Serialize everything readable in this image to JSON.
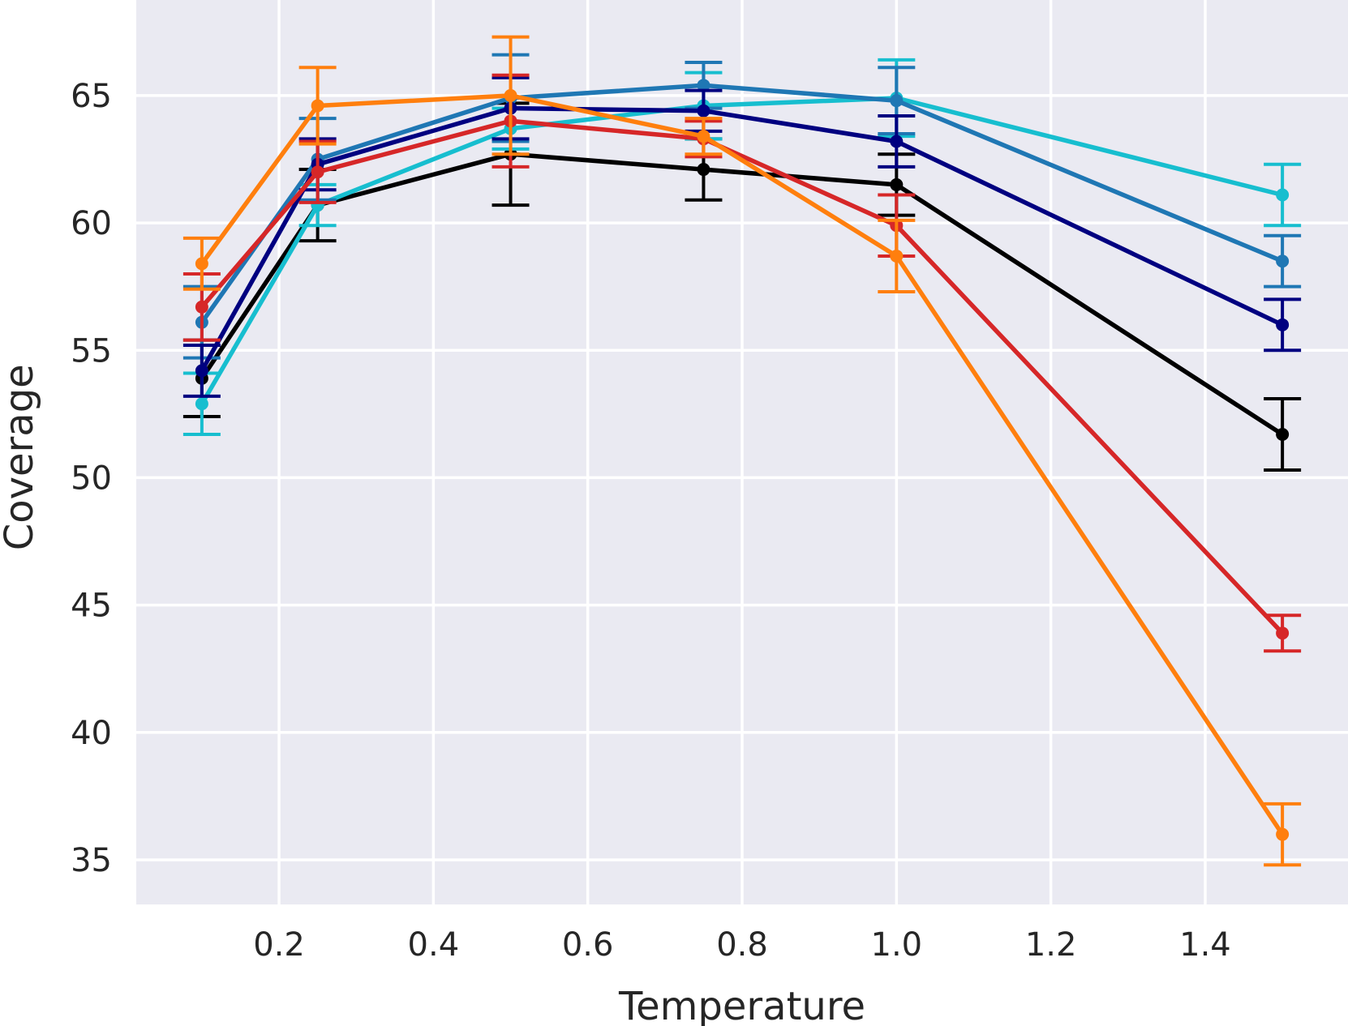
{
  "chart_data": {
    "type": "line",
    "title": "",
    "xlabel": "Temperature",
    "ylabel": "Coverage",
    "xlim": [
      0.015,
      1.585
    ],
    "ylim": [
      33.25,
      68.75
    ],
    "xticks": [
      "0.2",
      "0.4",
      "0.6",
      "0.8",
      "1.0",
      "1.2",
      "1.4"
    ],
    "xtick_values": [
      0.2,
      0.4,
      0.6,
      0.8,
      1.0,
      1.2,
      1.4
    ],
    "yticks": [
      "35",
      "40",
      "45",
      "50",
      "55",
      "60",
      "65"
    ],
    "ytick_values": [
      35,
      40,
      45,
      50,
      55,
      60,
      65
    ],
    "grid": true,
    "background": "#eaeaf2",
    "grid_color": "#ffffff",
    "x": [
      0.1,
      0.25,
      0.5,
      0.75,
      1.0,
      1.5
    ],
    "series": [
      {
        "name": "black",
        "color": "#000000",
        "values": [
          53.9,
          60.7,
          62.7,
          62.1,
          61.5,
          51.7
        ],
        "errors": [
          1.5,
          1.4,
          2.0,
          1.2,
          1.2,
          1.4
        ]
      },
      {
        "name": "cyan",
        "color": "#17becf",
        "values": [
          52.9,
          60.7,
          63.7,
          64.6,
          64.9,
          61.1
        ],
        "errors": [
          1.2,
          0.8,
          0.8,
          1.3,
          1.5,
          1.2
        ]
      },
      {
        "name": "blue",
        "color": "#1f77b4",
        "values": [
          56.1,
          62.5,
          64.9,
          65.4,
          64.8,
          58.5
        ],
        "errors": [
          1.4,
          1.6,
          1.7,
          0.9,
          1.3,
          1.0
        ]
      },
      {
        "name": "navy",
        "color": "#000080",
        "values": [
          54.2,
          62.3,
          64.5,
          64.4,
          63.2,
          56.0
        ],
        "errors": [
          1.0,
          1.0,
          1.2,
          0.8,
          1.0,
          1.0
        ]
      },
      {
        "name": "red",
        "color": "#d62728",
        "values": [
          56.7,
          62.0,
          64.0,
          63.3,
          59.9,
          43.9
        ],
        "errors": [
          1.3,
          1.2,
          1.8,
          0.7,
          1.2,
          0.7
        ]
      },
      {
        "name": "orange",
        "color": "#ff7f0e",
        "values": [
          58.4,
          64.6,
          65.0,
          63.4,
          58.7,
          36.0
        ],
        "errors": [
          1.0,
          1.5,
          2.3,
          0.7,
          1.4,
          1.2
        ]
      }
    ]
  }
}
